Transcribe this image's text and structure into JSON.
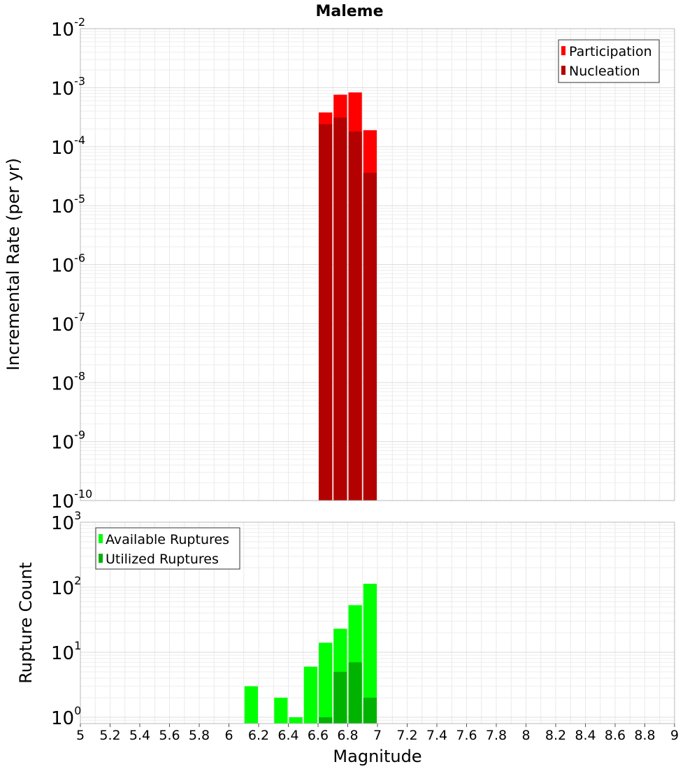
{
  "chart_data": [
    {
      "type": "bar",
      "title": "Maleme",
      "xlabel": "Magnitude",
      "ylabel": "Incremental Rate (per yr)",
      "yscale": "log",
      "ylim": [
        1e-10,
        0.01
      ],
      "xlim": [
        5,
        9
      ],
      "grid": true,
      "legend_position": "top-right",
      "bin_width": 0.1,
      "y_tick_labels": [
        {
          "base": "10",
          "exp": "-10"
        },
        {
          "base": "10",
          "exp": "-9"
        },
        {
          "base": "10",
          "exp": "-8"
        },
        {
          "base": "10",
          "exp": "-7"
        },
        {
          "base": "10",
          "exp": "-6"
        },
        {
          "base": "10",
          "exp": "-5"
        },
        {
          "base": "10",
          "exp": "-4"
        },
        {
          "base": "10",
          "exp": "-3"
        },
        {
          "base": "10",
          "exp": "-2"
        }
      ],
      "series": [
        {
          "name": "Participation",
          "color": "#ff0000",
          "points": [
            {
              "x": 6.65,
              "y": 0.00038
            },
            {
              "x": 6.75,
              "y": 0.00076
            },
            {
              "x": 6.85,
              "y": 0.00083
            },
            {
              "x": 6.95,
              "y": 0.00019
            }
          ]
        },
        {
          "name": "Nucleation",
          "color": "#b30000",
          "points": [
            {
              "x": 6.65,
              "y": 0.00024
            },
            {
              "x": 6.75,
              "y": 0.00031
            },
            {
              "x": 6.85,
              "y": 0.00018
            },
            {
              "x": 6.95,
              "y": 3.6e-05
            }
          ]
        }
      ]
    },
    {
      "type": "bar",
      "xlabel": "Magnitude",
      "ylabel": "Rupture Count",
      "yscale": "log",
      "ylim": [
        0.8,
        1000
      ],
      "xlim": [
        5,
        9
      ],
      "grid": true,
      "legend_position": "top-left",
      "bin_width": 0.1,
      "y_tick_labels": [
        {
          "base": "10",
          "exp": "0",
          "value": 1
        },
        {
          "base": "10",
          "exp": "1",
          "value": 10
        },
        {
          "base": "10",
          "exp": "2",
          "value": 100
        },
        {
          "base": "10",
          "exp": "3",
          "value": 1000
        }
      ],
      "x_tick_labels": [
        "5",
        "5.2",
        "5.4",
        "5.6",
        "5.8",
        "6",
        "6.2",
        "6.4",
        "6.6",
        "6.8",
        "7",
        "7.2",
        "7.4",
        "7.6",
        "7.8",
        "8",
        "8.2",
        "8.4",
        "8.6",
        "8.8",
        "9"
      ],
      "series": [
        {
          "name": "Available Ruptures",
          "color": "#00ff00",
          "points": [
            {
              "x": 6.15,
              "y": 3
            },
            {
              "x": 6.35,
              "y": 2
            },
            {
              "x": 6.45,
              "y": 1
            },
            {
              "x": 6.55,
              "y": 6
            },
            {
              "x": 6.65,
              "y": 14
            },
            {
              "x": 6.75,
              "y": 23
            },
            {
              "x": 6.85,
              "y": 53
            },
            {
              "x": 6.95,
              "y": 113
            }
          ]
        },
        {
          "name": "Utilized Ruptures",
          "color": "#00b300",
          "points": [
            {
              "x": 6.65,
              "y": 1
            },
            {
              "x": 6.75,
              "y": 5
            },
            {
              "x": 6.85,
              "y": 7
            },
            {
              "x": 6.95,
              "y": 2
            }
          ]
        }
      ]
    }
  ]
}
